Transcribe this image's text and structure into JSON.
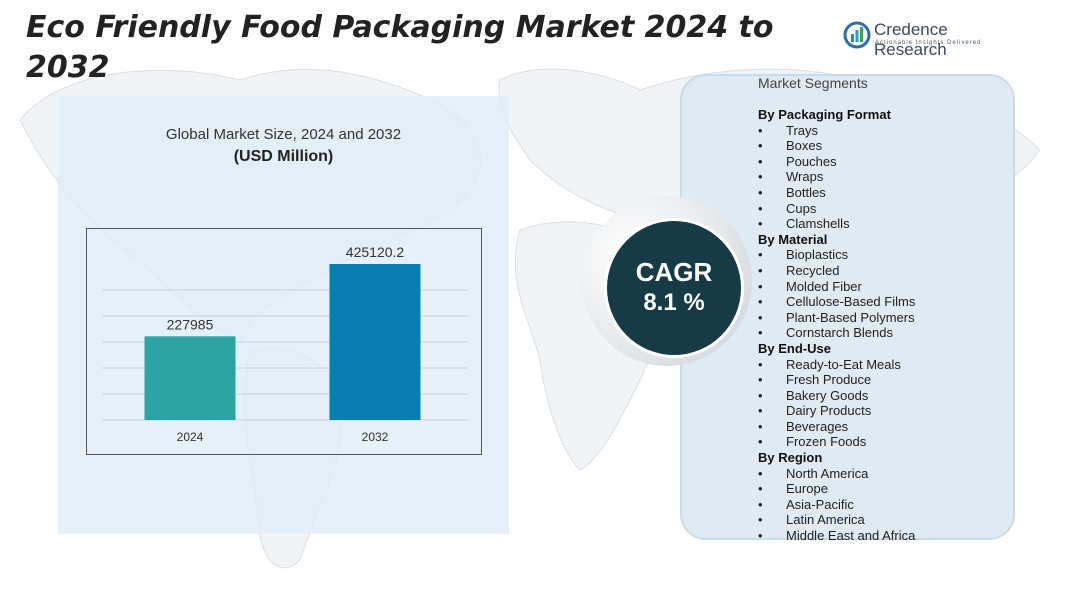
{
  "title": "Eco Friendly Food Packaging Market  2024 to 2032",
  "brand": {
    "name": "Credence Research",
    "tagline": "Actionable Insights Delivered"
  },
  "chart_data": {
    "type": "bar",
    "title": "Global Market Size, 2024 and 2032",
    "unit": "(USD Million)",
    "categories": [
      "2024",
      "2032"
    ],
    "values": [
      227985,
      425120.2
    ],
    "data_labels": [
      "227985",
      "425120.2"
    ],
    "colors": [
      "#2ea3a3",
      "#0a7eb3"
    ],
    "grid": true,
    "xlabel": "",
    "ylabel": ""
  },
  "cagr": {
    "label": "CAGR",
    "value": "8.1 %"
  },
  "segments": {
    "header": "Market Segments",
    "groups": [
      {
        "title": "By Packaging Format",
        "items": [
          "Trays",
          "Boxes",
          "Pouches",
          "Wraps",
          "Bottles",
          "Cups",
          "Clamshells"
        ]
      },
      {
        "title": "By Material",
        "items": [
          "Bioplastics",
          "Recycled",
          "Molded Fiber",
          "Cellulose-Based Films",
          "Plant-Based Polymers",
          "Cornstarch Blends"
        ]
      },
      {
        "title": "By End-Use",
        "items": [
          "Ready-to-Eat Meals",
          "Fresh Produce",
          "Bakery Goods",
          "Dairy Products",
          "Beverages",
          "Frozen Foods"
        ]
      },
      {
        "title": "By Region",
        "items": [
          "North America",
          "Europe",
          "Asia-Pacific",
          "Latin America",
          "Middle East and Africa"
        ]
      }
    ]
  },
  "colors": {
    "cagr_circle": "#173a47",
    "panel_bg": "#e0ecf6"
  }
}
